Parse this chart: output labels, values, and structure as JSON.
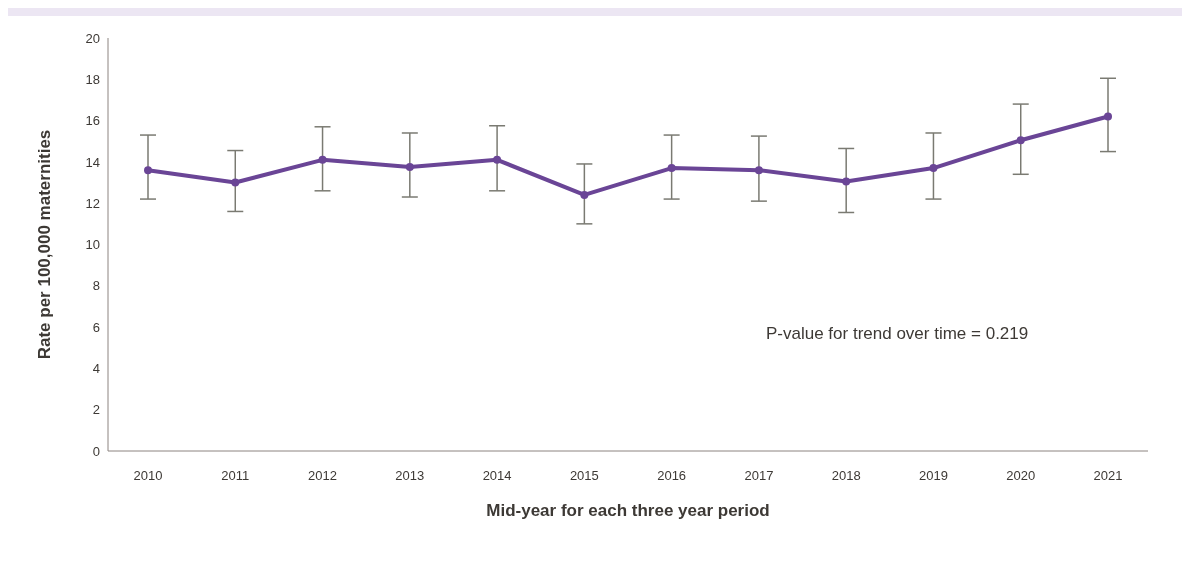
{
  "chart_data": {
    "type": "line",
    "xlabel": "Mid-year for each three year period",
    "ylabel": "Rate per 100,000 maternities",
    "categories": [
      "2010",
      "2011",
      "2012",
      "2013",
      "2014",
      "2015",
      "2016",
      "2017",
      "2018",
      "2019",
      "2020",
      "2021"
    ],
    "series": [
      {
        "color": "#6a4596",
        "values": [
          13.6,
          13.0,
          14.1,
          13.75,
          14.1,
          12.4,
          13.7,
          13.6,
          13.05,
          13.7,
          15.05,
          16.2
        ],
        "errors": [
          [
            12.2,
            15.3
          ],
          [
            11.6,
            14.55
          ],
          [
            12.6,
            15.7
          ],
          [
            12.3,
            15.4
          ],
          [
            12.6,
            15.75
          ],
          [
            11.0,
            13.9
          ],
          [
            12.2,
            15.3
          ],
          [
            12.1,
            15.25
          ],
          [
            11.55,
            14.65
          ],
          [
            12.2,
            15.4
          ],
          [
            13.4,
            16.8
          ],
          [
            14.5,
            18.05
          ]
        ]
      }
    ],
    "ylim": [
      0,
      20
    ],
    "yticks": [
      0,
      2,
      4,
      6,
      8,
      10,
      12,
      14,
      16,
      18,
      20
    ],
    "grid": false,
    "legend": false,
    "marker": "circle",
    "line_style": "solid",
    "annotations": [
      "P-value for trend over time = 0.219"
    ]
  }
}
